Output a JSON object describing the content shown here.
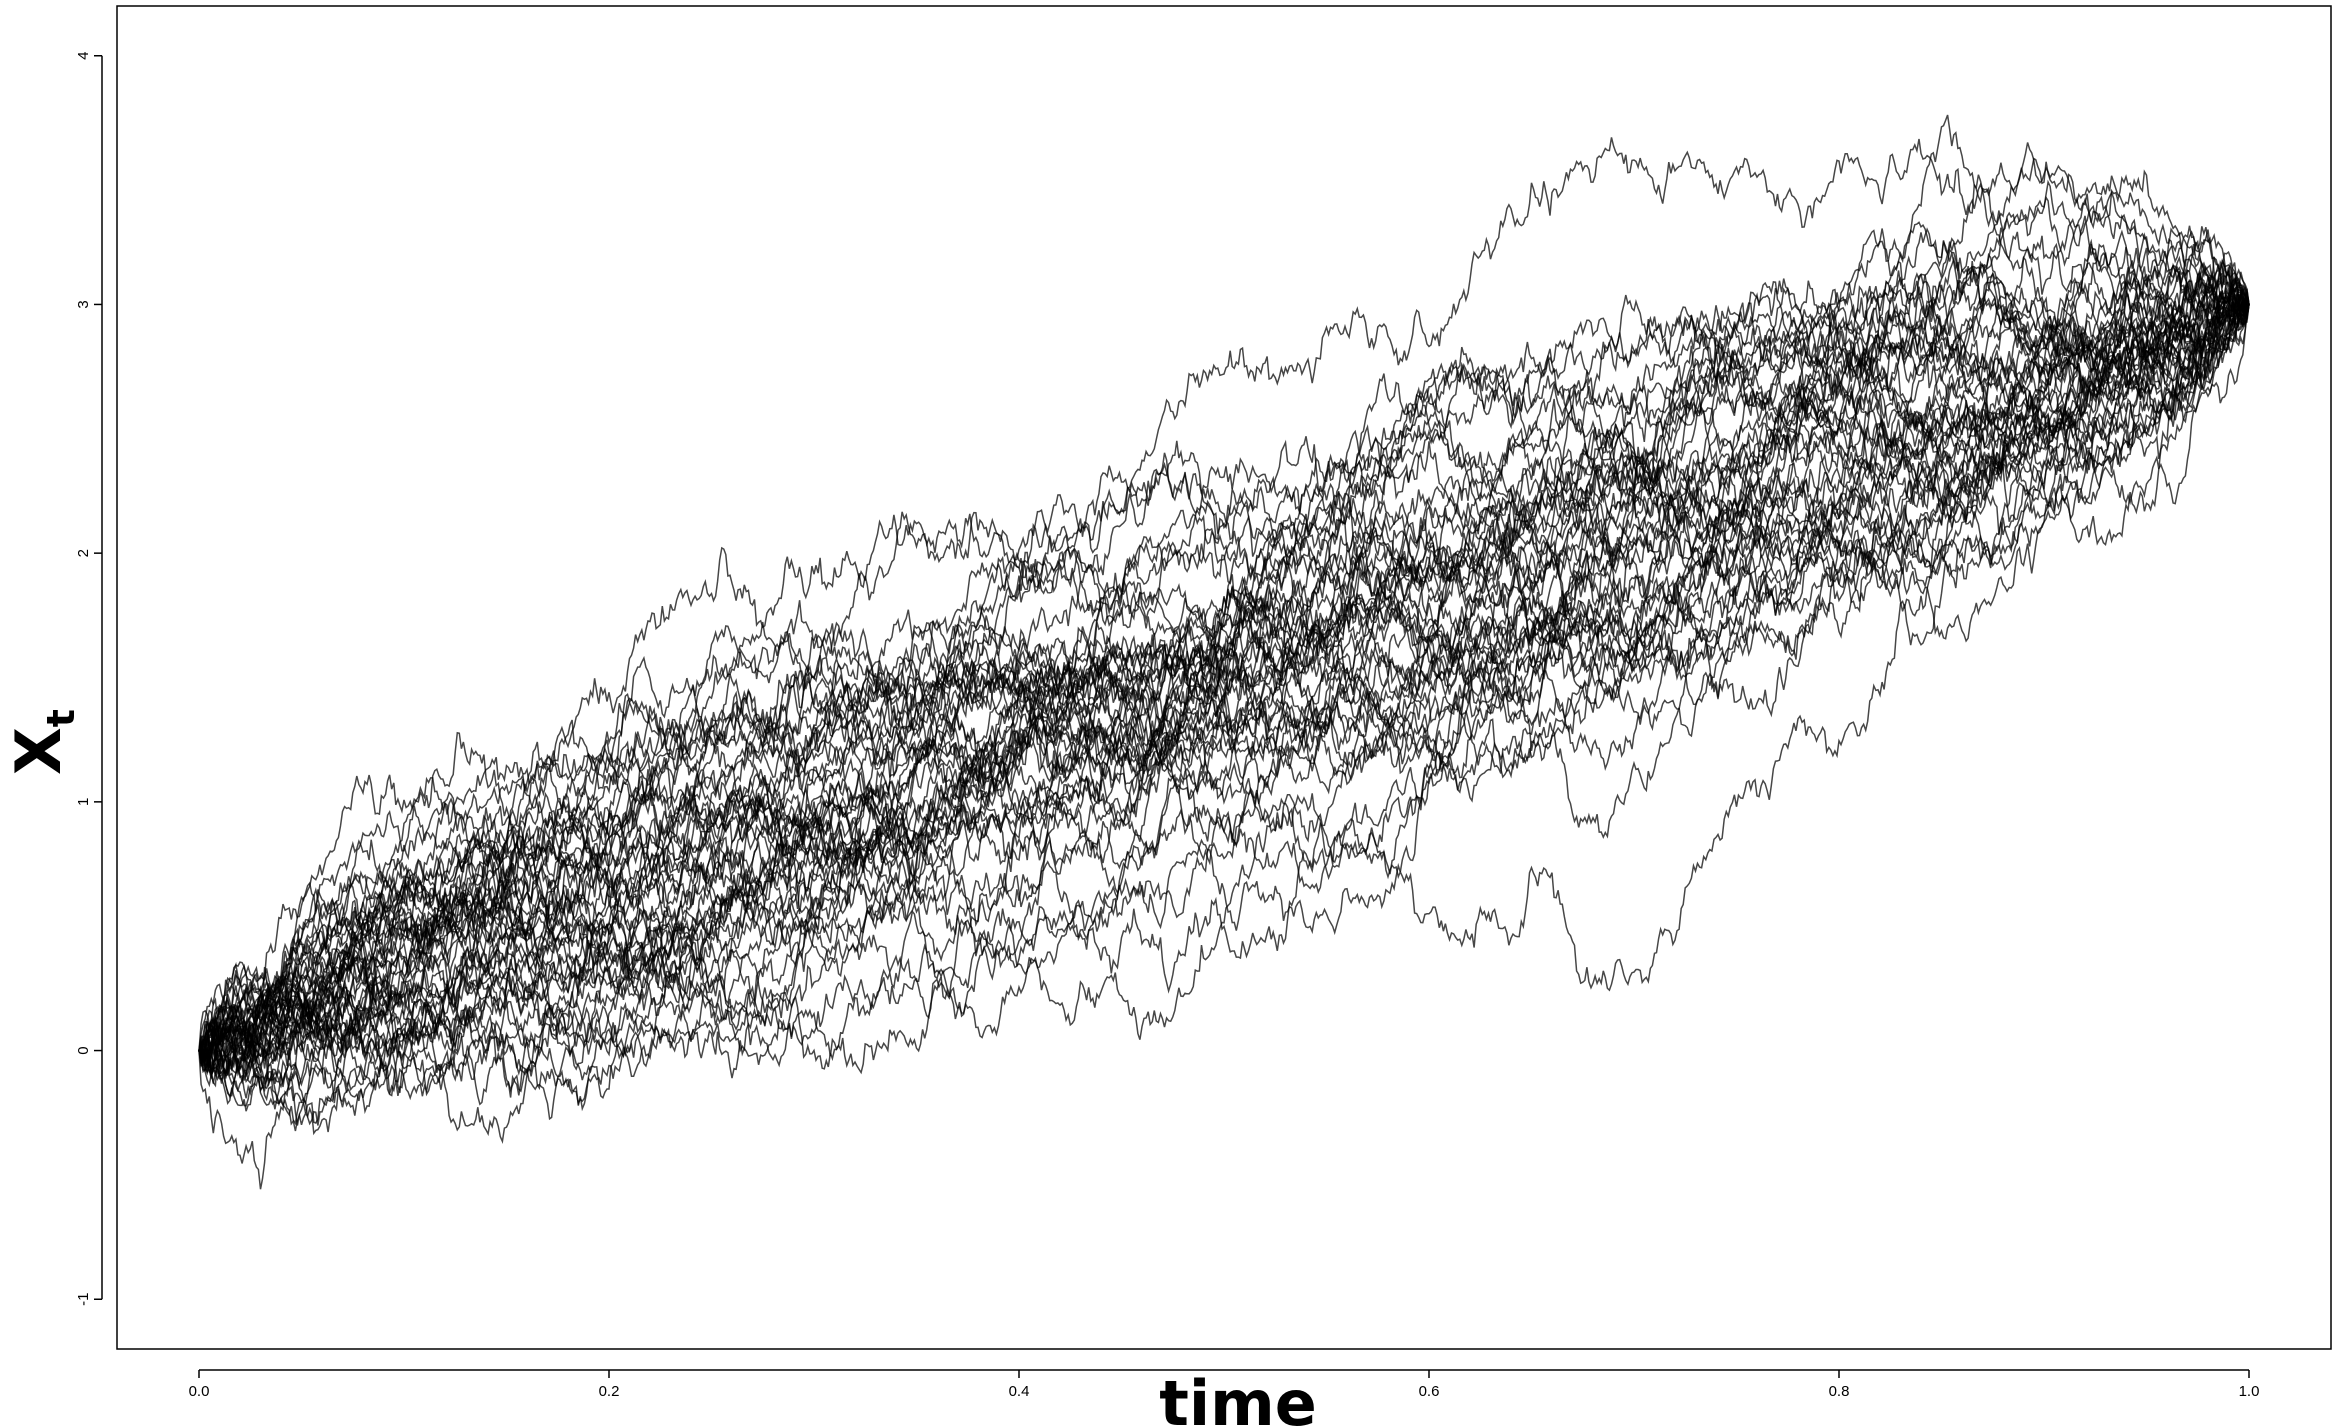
{
  "chart_data": {
    "type": "line",
    "title": "",
    "xlabel": "time",
    "ylabel": "X",
    "ylabel_subscript": "t",
    "xlim": [
      -0.04,
      1.04
    ],
    "ylim": [
      -1.2,
      4.2
    ],
    "x_ticks": [
      0.0,
      0.2,
      0.4,
      0.6,
      0.8,
      1.0
    ],
    "x_tick_labels": [
      "0.0",
      "0.2",
      "0.4",
      "0.6",
      "0.8",
      "1.0"
    ],
    "y_ticks": [
      -1,
      0,
      1,
      2,
      3,
      4
    ],
    "y_tick_labels": [
      "-1",
      "0",
      "1",
      "2",
      "3",
      "4"
    ],
    "grid": false,
    "legend": "none",
    "line_color": "#000000",
    "n_paths": 50,
    "path_start": {
      "x": 0.0,
      "y": 0.0
    },
    "path_end": {
      "x": 1.0,
      "y": 3.0
    },
    "description_of_paths": "50 Brownian bridge paths pinned from (0,0) to (1,3), drawn in black"
  }
}
